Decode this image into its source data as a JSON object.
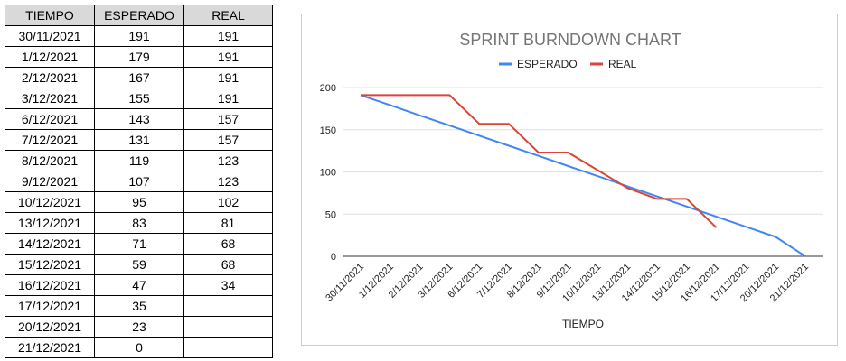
{
  "table": {
    "headers": [
      "TIEMPO",
      "ESPERADO",
      "REAL"
    ],
    "rows": [
      [
        "30/11/2021",
        "191",
        "191"
      ],
      [
        "1/12/2021",
        "179",
        "191"
      ],
      [
        "2/12/2021",
        "167",
        "191"
      ],
      [
        "3/12/2021",
        "155",
        "191"
      ],
      [
        "6/12/2021",
        "143",
        "157"
      ],
      [
        "7/12/2021",
        "131",
        "157"
      ],
      [
        "8/12/2021",
        "119",
        "123"
      ],
      [
        "9/12/2021",
        "107",
        "123"
      ],
      [
        "10/12/2021",
        "95",
        "102"
      ],
      [
        "13/12/2021",
        "83",
        "81"
      ],
      [
        "14/12/2021",
        "71",
        "68"
      ],
      [
        "15/12/2021",
        "59",
        "68"
      ],
      [
        "16/12/2021",
        "47",
        "34"
      ],
      [
        "17/12/2021",
        "35",
        ""
      ],
      [
        "20/12/2021",
        "23",
        ""
      ],
      [
        "21/12/2021",
        "0",
        ""
      ]
    ]
  },
  "chart_data": {
    "type": "line",
    "title": "SPRINT BURNDOWN CHART",
    "xlabel": "TIEMPO",
    "ylabel": "",
    "ylim": [
      0,
      200
    ],
    "yticks": [
      0,
      50,
      100,
      150,
      200
    ],
    "grid": true,
    "legend": "top",
    "categories": [
      "30/11/2021",
      "1/12/2021",
      "2/12/2021",
      "3/12/2021",
      "6/12/2021",
      "7/12/2021",
      "8/12/2021",
      "9/12/2021",
      "10/12/2021",
      "13/12/2021",
      "14/12/2021",
      "15/12/2021",
      "16/12/2021",
      "17/12/2021",
      "20/12/2021",
      "21/12/2021"
    ],
    "series": [
      {
        "name": "ESPERADO",
        "color": "#4285f4",
        "values": [
          191,
          179,
          167,
          155,
          143,
          131,
          119,
          107,
          95,
          83,
          71,
          59,
          47,
          35,
          23,
          0
        ]
      },
      {
        "name": "REAL",
        "color": "#db4437",
        "values": [
          191,
          191,
          191,
          191,
          157,
          157,
          123,
          123,
          102,
          81,
          68,
          68,
          34,
          null,
          null,
          null
        ]
      }
    ]
  }
}
